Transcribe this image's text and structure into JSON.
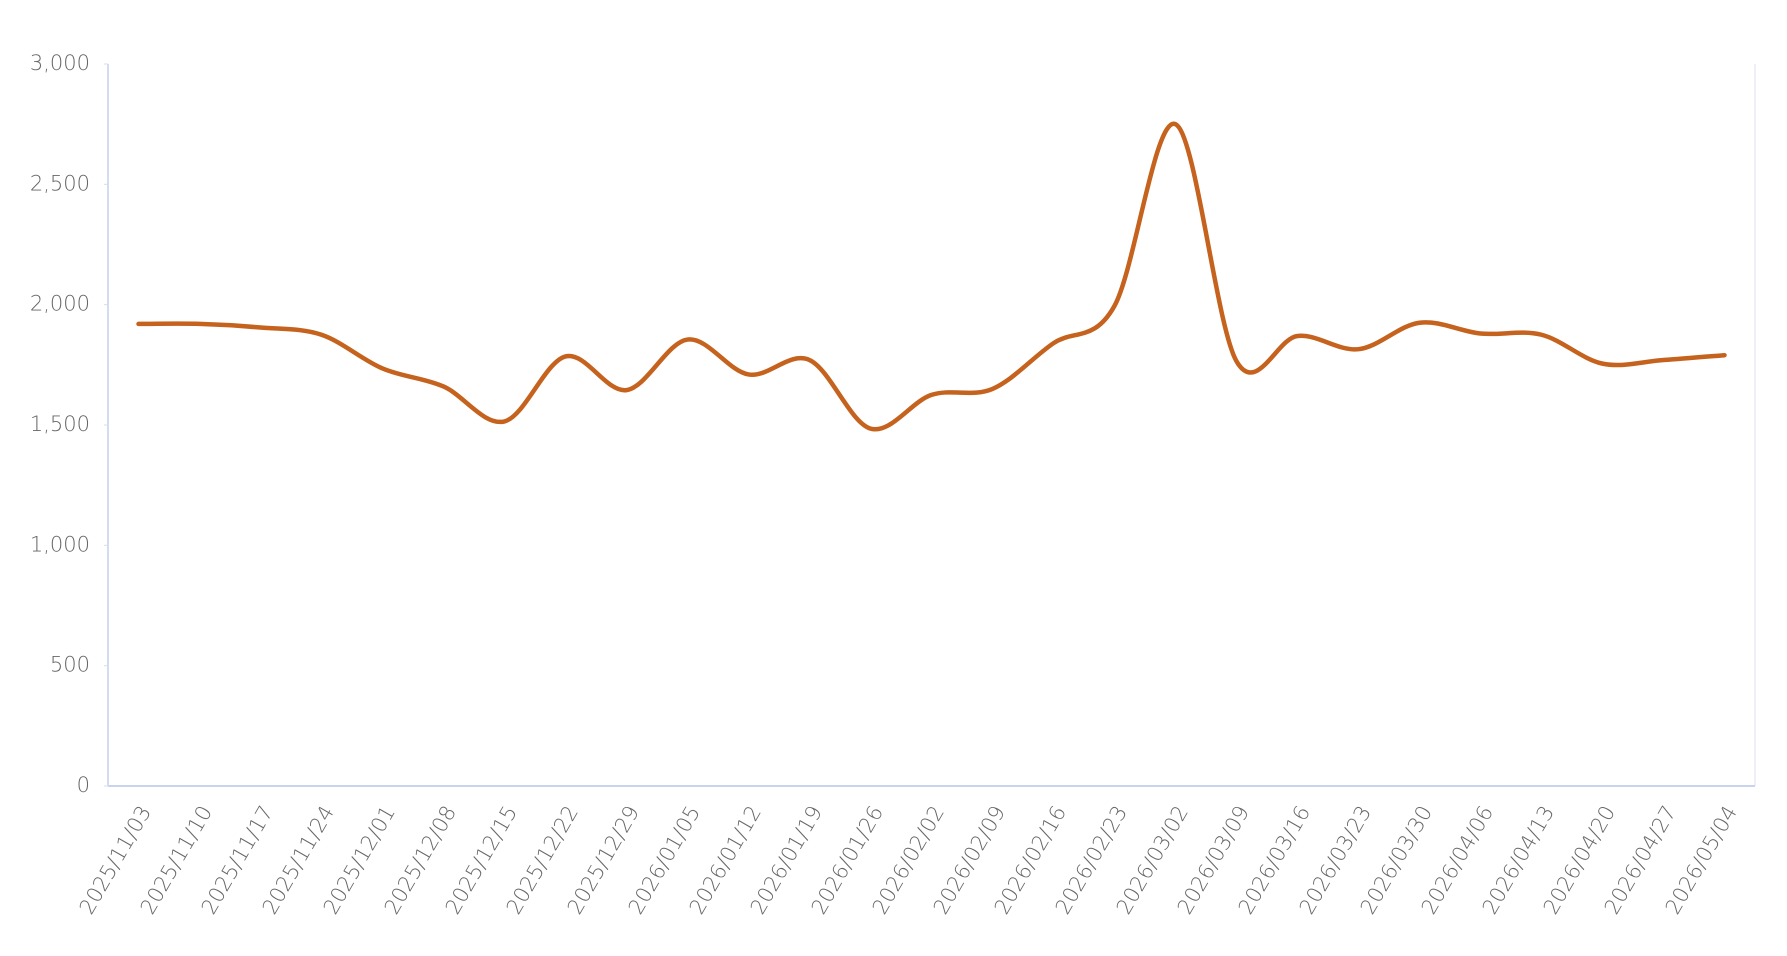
{
  "chart_data": {
    "type": "line",
    "categories": [
      "2025/11/03",
      "2025/11/10",
      "2025/11/17",
      "2025/11/24",
      "2025/12/01",
      "2025/12/08",
      "2025/12/15",
      "2025/12/22",
      "2025/12/29",
      "2026/01/05",
      "2026/01/12",
      "2026/01/19",
      "2026/01/26",
      "2026/02/02",
      "2026/02/09",
      "2026/02/16",
      "2026/02/23",
      "2026/03/02",
      "2026/03/09",
      "2026/03/16",
      "2026/03/23",
      "2026/03/30",
      "2026/04/06",
      "2026/04/13",
      "2026/04/20",
      "2026/04/27",
      "2026/05/04"
    ],
    "values": [
      1920,
      1920,
      1905,
      1875,
      1735,
      1660,
      1515,
      1785,
      1645,
      1855,
      1710,
      1770,
      1485,
      1625,
      1650,
      1840,
      1995,
      2750,
      1765,
      1870,
      1815,
      1925,
      1880,
      1875,
      1755,
      1770,
      1790
    ],
    "color": "#c5621d",
    "ylim": [
      0,
      3000
    ],
    "yticks": [
      0,
      500,
      {
        "value": 1000,
        "label": "1,000"
      },
      {
        "value": 1500,
        "label": "1,500"
      },
      {
        "value": 2000,
        "label": "2,000"
      },
      {
        "value": 2500,
        "label": "2,500"
      },
      {
        "value": 3000,
        "label": "3,000"
      }
    ],
    "grid": false
  }
}
